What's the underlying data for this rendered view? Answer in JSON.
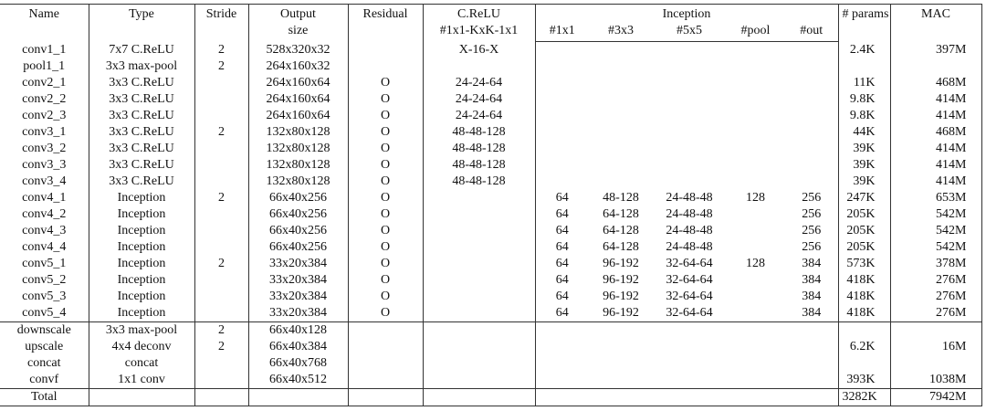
{
  "header": {
    "name": "Name",
    "type": "Type",
    "stride": "Stride",
    "output": [
      "Output",
      "size"
    ],
    "residual": "Residual",
    "crelu": [
      "C.ReLU",
      "#1x1-KxK-1x1"
    ],
    "inception": "Inception",
    "inception_cols": [
      "#1x1",
      "#3x3",
      "#5x5",
      "#pool",
      "#out"
    ],
    "params": "# params",
    "mac": "MAC"
  },
  "sections": [
    [
      [
        "conv1_1",
        "7x7 C.ReLU",
        "2",
        "528x320x32",
        null,
        "X-16-X",
        null,
        null,
        null,
        null,
        null,
        "2.4K",
        "397M"
      ],
      [
        "pool1_1",
        "3x3 max-pool",
        "2",
        "264x160x32",
        null,
        null,
        null,
        null,
        null,
        null,
        null,
        null,
        null
      ],
      [
        "conv2_1",
        "3x3 C.ReLU",
        null,
        "264x160x64",
        "O",
        "24-24-64",
        null,
        null,
        null,
        null,
        null,
        "11K",
        "468M"
      ],
      [
        "conv2_2",
        "3x3 C.ReLU",
        null,
        "264x160x64",
        "O",
        "24-24-64",
        null,
        null,
        null,
        null,
        null,
        "9.8K",
        "414M"
      ],
      [
        "conv2_3",
        "3x3 C.ReLU",
        null,
        "264x160x64",
        "O",
        "24-24-64",
        null,
        null,
        null,
        null,
        null,
        "9.8K",
        "414M"
      ],
      [
        "conv3_1",
        "3x3 C.ReLU",
        "2",
        "132x80x128",
        "O",
        "48-48-128",
        null,
        null,
        null,
        null,
        null,
        "44K",
        "468M"
      ],
      [
        "conv3_2",
        "3x3 C.ReLU",
        null,
        "132x80x128",
        "O",
        "48-48-128",
        null,
        null,
        null,
        null,
        null,
        "39K",
        "414M"
      ],
      [
        "conv3_3",
        "3x3 C.ReLU",
        null,
        "132x80x128",
        "O",
        "48-48-128",
        null,
        null,
        null,
        null,
        null,
        "39K",
        "414M"
      ],
      [
        "conv3_4",
        "3x3 C.ReLU",
        null,
        "132x80x128",
        "O",
        "48-48-128",
        null,
        null,
        null,
        null,
        null,
        "39K",
        "414M"
      ],
      [
        "conv4_1",
        "Inception",
        "2",
        "66x40x256",
        "O",
        null,
        "64",
        "48-128",
        "24-48-48",
        "128",
        "256",
        "247K",
        "653M"
      ],
      [
        "conv4_2",
        "Inception",
        null,
        "66x40x256",
        "O",
        null,
        "64",
        "64-128",
        "24-48-48",
        null,
        "256",
        "205K",
        "542M"
      ],
      [
        "conv4_3",
        "Inception",
        null,
        "66x40x256",
        "O",
        null,
        "64",
        "64-128",
        "24-48-48",
        null,
        "256",
        "205K",
        "542M"
      ],
      [
        "conv4_4",
        "Inception",
        null,
        "66x40x256",
        "O",
        null,
        "64",
        "64-128",
        "24-48-48",
        null,
        "256",
        "205K",
        "542M"
      ],
      [
        "conv5_1",
        "Inception",
        "2",
        "33x20x384",
        "O",
        null,
        "64",
        "96-192",
        "32-64-64",
        "128",
        "384",
        "573K",
        "378M"
      ],
      [
        "conv5_2",
        "Inception",
        null,
        "33x20x384",
        "O",
        null,
        "64",
        "96-192",
        "32-64-64",
        null,
        "384",
        "418K",
        "276M"
      ],
      [
        "conv5_3",
        "Inception",
        null,
        "33x20x384",
        "O",
        null,
        "64",
        "96-192",
        "32-64-64",
        null,
        "384",
        "418K",
        "276M"
      ],
      [
        "conv5_4",
        "Inception",
        null,
        "33x20x384",
        "O",
        null,
        "64",
        "96-192",
        "32-64-64",
        null,
        "384",
        "418K",
        "276M"
      ]
    ],
    [
      [
        "downscale",
        "3x3 max-pool",
        "2",
        "66x40x128",
        null,
        null,
        null,
        null,
        null,
        null,
        null,
        null,
        null
      ],
      [
        "upscale",
        "4x4 deconv",
        "2",
        "66x40x384",
        null,
        null,
        null,
        null,
        null,
        null,
        null,
        "6.2K",
        "16M"
      ],
      [
        "concat",
        "concat",
        null,
        "66x40x768",
        null,
        null,
        null,
        null,
        null,
        null,
        null,
        null,
        null
      ],
      [
        "convf",
        "1x1 conv",
        null,
        "66x40x512",
        null,
        null,
        null,
        null,
        null,
        null,
        null,
        "393K",
        "1038M"
      ]
    ],
    [
      [
        "Total",
        null,
        null,
        null,
        null,
        null,
        null,
        null,
        null,
        null,
        null,
        "3282K",
        "7942M"
      ]
    ]
  ]
}
